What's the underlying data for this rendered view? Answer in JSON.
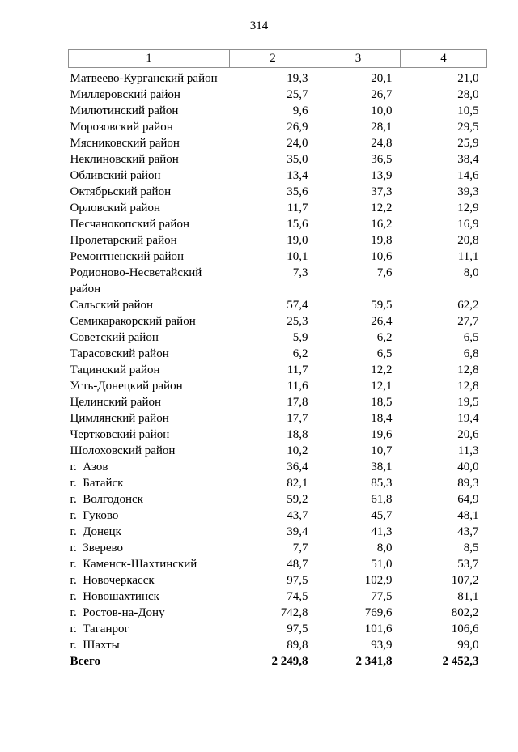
{
  "page": {
    "number": "314"
  },
  "table": {
    "headers": [
      "1",
      "2",
      "3",
      "4"
    ],
    "rows": [
      {
        "name": "Матвеево-Курганский район",
        "values": [
          "19,3",
          "20,1",
          "21,0"
        ]
      },
      {
        "name": "Миллеровский район",
        "values": [
          "25,7",
          "26,7",
          "28,0"
        ]
      },
      {
        "name": "Милютинский район",
        "values": [
          "9,6",
          "10,0",
          "10,5"
        ]
      },
      {
        "name": "Морозовский район",
        "values": [
          "26,9",
          "28,1",
          "29,5"
        ]
      },
      {
        "name": "Мясниковский район",
        "values": [
          "24,0",
          "24,8",
          "25,9"
        ]
      },
      {
        "name": "Неклиновский район",
        "values": [
          "35,0",
          "36,5",
          "38,4"
        ]
      },
      {
        "name": "Обливский район",
        "values": [
          "13,4",
          "13,9",
          "14,6"
        ]
      },
      {
        "name": "Октябрьский район",
        "values": [
          "35,6",
          "37,3",
          "39,3"
        ]
      },
      {
        "name": "Орловский район",
        "values": [
          "11,7",
          "12,2",
          "12,9"
        ]
      },
      {
        "name": "Песчанокопский район",
        "values": [
          "15,6",
          "16,2",
          "16,9"
        ]
      },
      {
        "name": "Пролетарский район",
        "values": [
          "19,0",
          "19,8",
          "20,8"
        ]
      },
      {
        "name": "Ремонтненский район",
        "values": [
          "10,1",
          "10,6",
          "11,1"
        ]
      },
      {
        "name": "Родионово-Несветайский район",
        "values": [
          "7,3",
          "7,6",
          "8,0"
        ]
      },
      {
        "name": "Сальский район",
        "values": [
          "57,4",
          "59,5",
          "62,2"
        ]
      },
      {
        "name": "Семикаракорский район",
        "values": [
          "25,3",
          "26,4",
          "27,7"
        ]
      },
      {
        "name": "Советский район",
        "values": [
          "5,9",
          "6,2",
          "6,5"
        ]
      },
      {
        "name": "Тарасовский район",
        "values": [
          "6,2",
          "6,5",
          "6,8"
        ]
      },
      {
        "name": "Тацинский район",
        "values": [
          "11,7",
          "12,2",
          "12,8"
        ]
      },
      {
        "name": "Усть-Донецкий район",
        "values": [
          "11,6",
          "12,1",
          "12,8"
        ]
      },
      {
        "name": "Целинский район",
        "values": [
          "17,8",
          "18,5",
          "19,5"
        ]
      },
      {
        "name": "Цимлянский район",
        "values": [
          "17,7",
          "18,4",
          "19,4"
        ]
      },
      {
        "name": "Чертковский район",
        "values": [
          "18,8",
          "19,6",
          "20,6"
        ]
      },
      {
        "name": "Шолоховский район",
        "values": [
          "10,2",
          "10,7",
          "11,3"
        ]
      },
      {
        "name": "г.  Азов",
        "values": [
          "36,4",
          "38,1",
          "40,0"
        ]
      },
      {
        "name": "г.  Батайск",
        "values": [
          "82,1",
          "85,3",
          "89,3"
        ]
      },
      {
        "name": "г.  Волгодонск",
        "values": [
          "59,2",
          "61,8",
          "64,9"
        ]
      },
      {
        "name": "г.  Гуково",
        "values": [
          "43,7",
          "45,7",
          "48,1"
        ]
      },
      {
        "name": "г.  Донецк",
        "values": [
          "39,4",
          "41,3",
          "43,7"
        ]
      },
      {
        "name": "г.  Зверево",
        "values": [
          "7,7",
          "8,0",
          "8,5"
        ]
      },
      {
        "name": "г.  Каменск-Шахтинский",
        "values": [
          "48,7",
          "51,0",
          "53,7"
        ]
      },
      {
        "name": "г.  Новочеркасск",
        "values": [
          "97,5",
          "102,9",
          "107,2"
        ]
      },
      {
        "name": "г.  Новошахтинск",
        "values": [
          "74,5",
          "77,5",
          "81,1"
        ]
      },
      {
        "name": "г.  Ростов-на-Дону",
        "values": [
          "742,8",
          "769,6",
          "802,2"
        ]
      },
      {
        "name": "г.  Таганрог",
        "values": [
          "97,5",
          "101,6",
          "106,6"
        ]
      },
      {
        "name": "г.  Шахты",
        "values": [
          "89,8",
          "93,9",
          "99,0"
        ]
      }
    ],
    "total": {
      "name": "Всего",
      "values": [
        "2 249,8",
        "2 341,8",
        "2 452,3"
      ]
    }
  }
}
